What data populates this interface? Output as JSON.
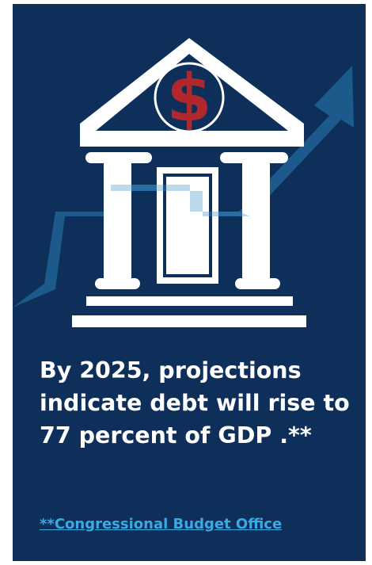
{
  "colors": {
    "background": "#0d2f5a",
    "icon": "#ffffff",
    "dollar_badge": "#b0272d",
    "arrow": "#2e7fb3",
    "link": "#3aa9e4"
  },
  "icons": {
    "bank": "bank-building-icon",
    "currency": "dollar-sign-icon",
    "trend": "rising-arrow-icon"
  },
  "currency_symbol": "$",
  "headline": {
    "line1": "By 2025, projections",
    "line2": "indicate debt will rise to",
    "line3": "77 percent of GDP .**"
  },
  "source": {
    "label": "**Congressional Budget Office"
  }
}
